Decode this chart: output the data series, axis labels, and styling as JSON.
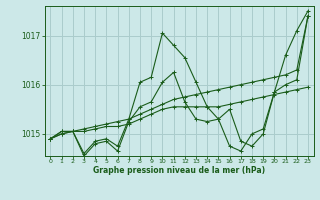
{
  "background_color": "#cce8e8",
  "grid_color": "#aacccc",
  "line_color": "#1a5c1a",
  "title": "Graphe pression niveau de la mer (hPa)",
  "xlim": [
    -0.5,
    23.5
  ],
  "ylim": [
    1014.55,
    1017.6
  ],
  "yticks": [
    1015,
    1016,
    1017
  ],
  "xticks": [
    0,
    1,
    2,
    3,
    4,
    5,
    6,
    7,
    8,
    9,
    10,
    11,
    12,
    13,
    14,
    15,
    16,
    17,
    18,
    19,
    20,
    21,
    22,
    23
  ],
  "series": [
    {
      "x": [
        0,
        1,
        2,
        3,
        4,
        5,
        6,
        7,
        8,
        9,
        10,
        11,
        12,
        13,
        14,
        15,
        16,
        17,
        18,
        19,
        20,
        21,
        22,
        23
      ],
      "y": [
        1014.9,
        1015.0,
        1015.05,
        1015.1,
        1015.15,
        1015.2,
        1015.25,
        1015.3,
        1015.4,
        1015.5,
        1015.6,
        1015.7,
        1015.75,
        1015.8,
        1015.85,
        1015.9,
        1015.95,
        1016.0,
        1016.05,
        1016.1,
        1016.15,
        1016.2,
        1016.3,
        1017.4
      ]
    },
    {
      "x": [
        0,
        1,
        2,
        3,
        4,
        5,
        6,
        7,
        8,
        9,
        10,
        11,
        12,
        13,
        14,
        15,
        16,
        17,
        18,
        19,
        20,
        21,
        22,
        23
      ],
      "y": [
        1014.9,
        1015.0,
        1015.05,
        1015.05,
        1015.1,
        1015.15,
        1015.15,
        1015.2,
        1015.3,
        1015.4,
        1015.5,
        1015.55,
        1015.55,
        1015.55,
        1015.55,
        1015.55,
        1015.6,
        1015.65,
        1015.7,
        1015.75,
        1015.8,
        1015.85,
        1015.9,
        1015.95
      ]
    },
    {
      "x": [
        0,
        1,
        2,
        3,
        4,
        5,
        6,
        7,
        8,
        9,
        10,
        11,
        12,
        13,
        14,
        15,
        16,
        17,
        18,
        19,
        20,
        21,
        22,
        23
      ],
      "y": [
        1014.9,
        1015.05,
        1015.05,
        1014.6,
        1014.85,
        1014.9,
        1014.75,
        1015.3,
        1016.05,
        1016.15,
        1017.05,
        1016.8,
        1016.55,
        1016.05,
        1015.55,
        1015.3,
        1014.75,
        1014.65,
        1015.0,
        1015.1,
        1015.85,
        1016.6,
        1017.1,
        1017.5
      ]
    },
    {
      "x": [
        0,
        1,
        2,
        3,
        4,
        5,
        6,
        7,
        8,
        9,
        10,
        11,
        12,
        13,
        14,
        15,
        16,
        17,
        18,
        19,
        20,
        21,
        22,
        23
      ],
      "y": [
        1014.9,
        1015.05,
        1015.05,
        1014.55,
        1014.8,
        1014.85,
        1014.65,
        1015.25,
        1015.55,
        1015.65,
        1016.05,
        1016.25,
        1015.65,
        1015.3,
        1015.25,
        1015.3,
        1015.5,
        1014.85,
        1014.75,
        1015.0,
        1015.85,
        1016.0,
        1016.1,
        1017.4
      ]
    }
  ]
}
